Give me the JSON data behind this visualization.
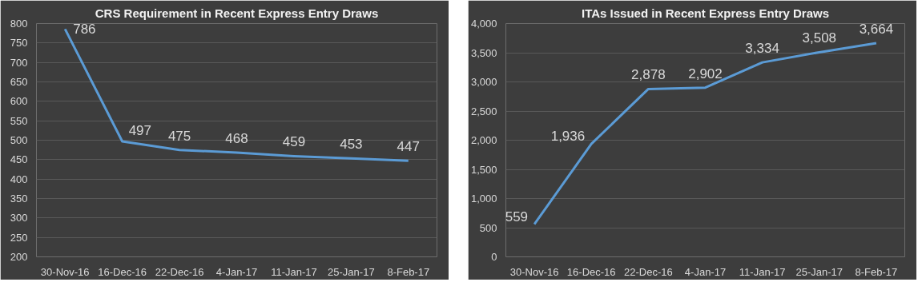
{
  "chart_data": [
    {
      "type": "line",
      "title": "CRS Requirement in Recent Express Entry Draws",
      "categories": [
        "30-Nov-16",
        "16-Dec-16",
        "22-Dec-16",
        "4-Jan-17",
        "11-Jan-17",
        "25-Jan-17",
        "8-Feb-17"
      ],
      "series": [
        {
          "color": "#5b9bd5",
          "values": [
            786,
            497,
            475,
            468,
            459,
            453,
            447
          ]
        }
      ],
      "ylim": [
        200,
        800
      ],
      "yticks": [
        200,
        250,
        300,
        350,
        400,
        450,
        500,
        550,
        600,
        650,
        700,
        750,
        800
      ],
      "grid": "y",
      "data_labels": true
    },
    {
      "type": "line",
      "title": "ITAs Issued in Recent Express Entry Draws",
      "categories": [
        "30-Nov-16",
        "16-Dec-16",
        "22-Dec-16",
        "4-Jan-17",
        "11-Jan-17",
        "25-Jan-17",
        "8-Feb-17"
      ],
      "series": [
        {
          "color": "#5b9bd5",
          "values": [
            559,
            1936,
            2878,
            2902,
            3334,
            3508,
            3664
          ],
          "value_labels": [
            "559",
            "1,936",
            "2,878",
            "2,902",
            "3,334",
            "3,508",
            "3,664"
          ]
        }
      ],
      "ylim": [
        0,
        4000
      ],
      "yticks": [
        0,
        {
          "value": 500,
          "label": "500"
        },
        {
          "value": 1000,
          "label": "1,000"
        },
        {
          "value": 1500,
          "label": "1,500"
        },
        {
          "value": 2000,
          "label": "2,000"
        },
        {
          "value": 2500,
          "label": "2,500"
        },
        {
          "value": 3000,
          "label": "3,000"
        },
        {
          "value": 3500,
          "label": "3,500"
        },
        {
          "value": 4000,
          "label": "4,000"
        }
      ],
      "grid": "y"
    }
  ]
}
